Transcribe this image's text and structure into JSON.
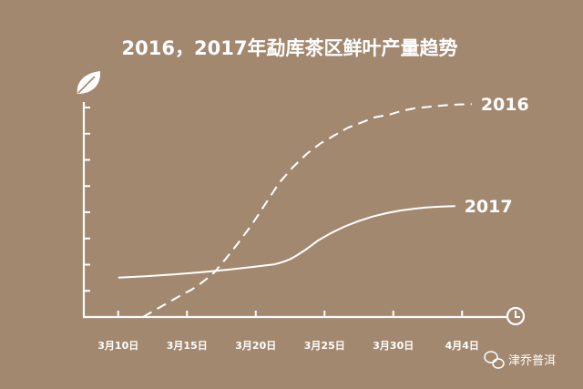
{
  "chart_data": {
    "type": "line",
    "title": "2016，2017年勐库茶区鲜叶产量趋势",
    "categories": [
      "3月10日",
      "3月15日",
      "3月20日",
      "3月25日",
      "3月30日",
      "4月4日"
    ],
    "series": [
      {
        "name": "2016",
        "style": "dashed",
        "x": [
          1.8,
          2.8,
          3.8,
          4.8,
          5.2,
          5.5,
          5.8,
          6.3,
          7.0,
          7.8,
          8.7,
          9.7,
          10.7,
          11.7,
          12.7,
          13.7,
          14.7,
          15.7,
          16.7,
          17.7,
          18.7,
          19.7,
          20.7,
          21.7,
          22.7,
          23.7,
          24.7,
          25.7
        ],
        "values": [
          0.0,
          0.3,
          0.6,
          0.9,
          1.0,
          1.1,
          1.2,
          1.4,
          1.7,
          2.2,
          2.8,
          3.5,
          4.3,
          5.1,
          5.7,
          6.2,
          6.6,
          6.9,
          7.2,
          7.4,
          7.6,
          7.7,
          7.85,
          7.95,
          8.0,
          8.05,
          8.08,
          8.1
        ]
      },
      {
        "name": "2017",
        "style": "solid",
        "x": [
          0.0,
          2.0,
          4.0,
          6.0,
          8.0,
          10.0,
          11.3,
          11.7,
          12.1,
          12.5,
          13.0,
          13.6,
          14.5,
          15.5,
          16.5,
          17.5,
          18.5,
          19.5,
          20.5,
          21.5,
          22.5,
          23.5,
          24.5
        ],
        "values": [
          1.5,
          1.55,
          1.62,
          1.7,
          1.8,
          1.92,
          2.0,
          2.05,
          2.12,
          2.2,
          2.35,
          2.55,
          2.9,
          3.2,
          3.45,
          3.65,
          3.82,
          3.95,
          4.05,
          4.12,
          4.17,
          4.2,
          4.22
        ]
      }
    ],
    "xlim": [
      -2.5,
      27.5
    ],
    "ylim": [
      0,
      8.8
    ],
    "y_axis_tick_count": 8,
    "xlabel": "",
    "ylabel": "",
    "grid": false,
    "legend": "series labels at the end of each line",
    "y_axis_icon": "leaf-icon",
    "x_axis_icon": "clock-icon"
  },
  "colors": {
    "background": "#a38870",
    "ink": "#ffffff"
  },
  "watermark": {
    "icon": "wechat-icon",
    "text": "津乔普洱"
  }
}
